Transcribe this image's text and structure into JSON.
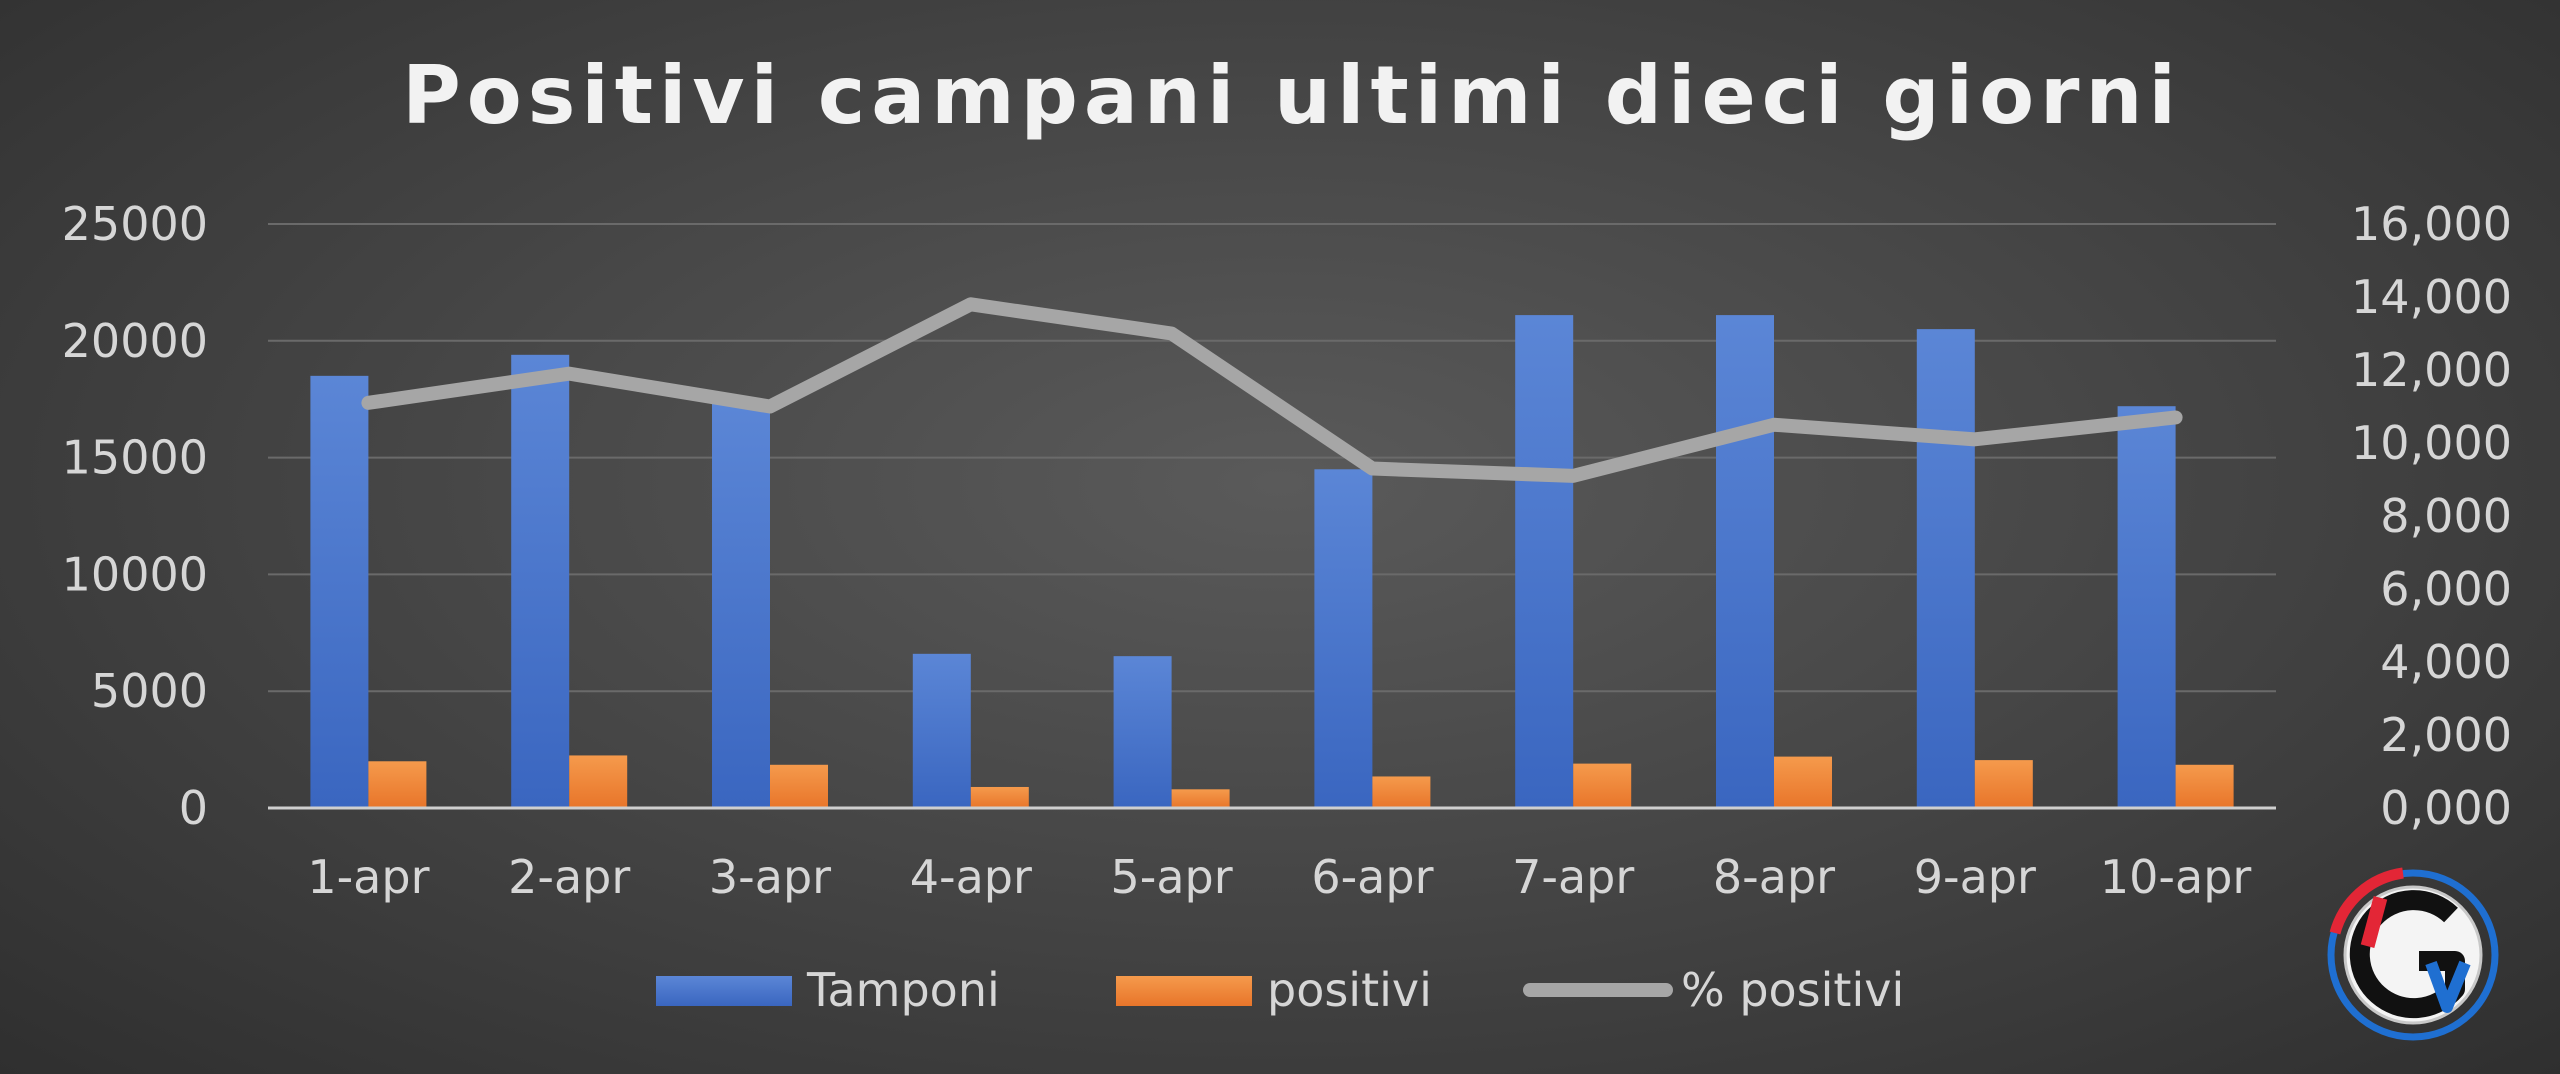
{
  "chart_data": {
    "type": "bar",
    "title": "Positivi campani ultimi dieci giorni",
    "categories": [
      "1-apr",
      "2-apr",
      "3-apr",
      "4-apr",
      "5-apr",
      "6-apr",
      "7-apr",
      "8-apr",
      "9-apr",
      "10-apr"
    ],
    "series": [
      {
        "name": "Tamponi",
        "type": "bar",
        "axis": "left",
        "color": "#4472c4",
        "values": [
          18500,
          19400,
          17300,
          6600,
          6500,
          14500,
          21100,
          21100,
          20500,
          17200
        ]
      },
      {
        "name": "positivi",
        "type": "bar",
        "axis": "left",
        "color": "#ed7d31",
        "values": [
          2000,
          2250,
          1850,
          900,
          800,
          1350,
          1900,
          2200,
          2050,
          1850
        ]
      },
      {
        "name": "% positivi",
        "type": "line",
        "axis": "right",
        "color": "#a6a6a6",
        "values": [
          11.1,
          11.9,
          11.0,
          13.8,
          13.0,
          9.3,
          9.1,
          10.5,
          10.1,
          10.7
        ]
      }
    ],
    "ylim": [
      0,
      25000
    ],
    "y_ticks": [
      "0",
      "5000",
      "10000",
      "15000",
      "20000",
      "25000"
    ],
    "y2lim": [
      0,
      16
    ],
    "y2_ticks": [
      "0,000",
      "2,000",
      "4,000",
      "6,000",
      "8,000",
      "10,000",
      "12,000",
      "14,000",
      "16,000"
    ],
    "grid": true,
    "legend_position": "bottom"
  },
  "logo": {
    "text": "iGv",
    "colors": [
      "#e32636",
      "#1f6fd1",
      "#111111",
      "#ffffff"
    ]
  }
}
